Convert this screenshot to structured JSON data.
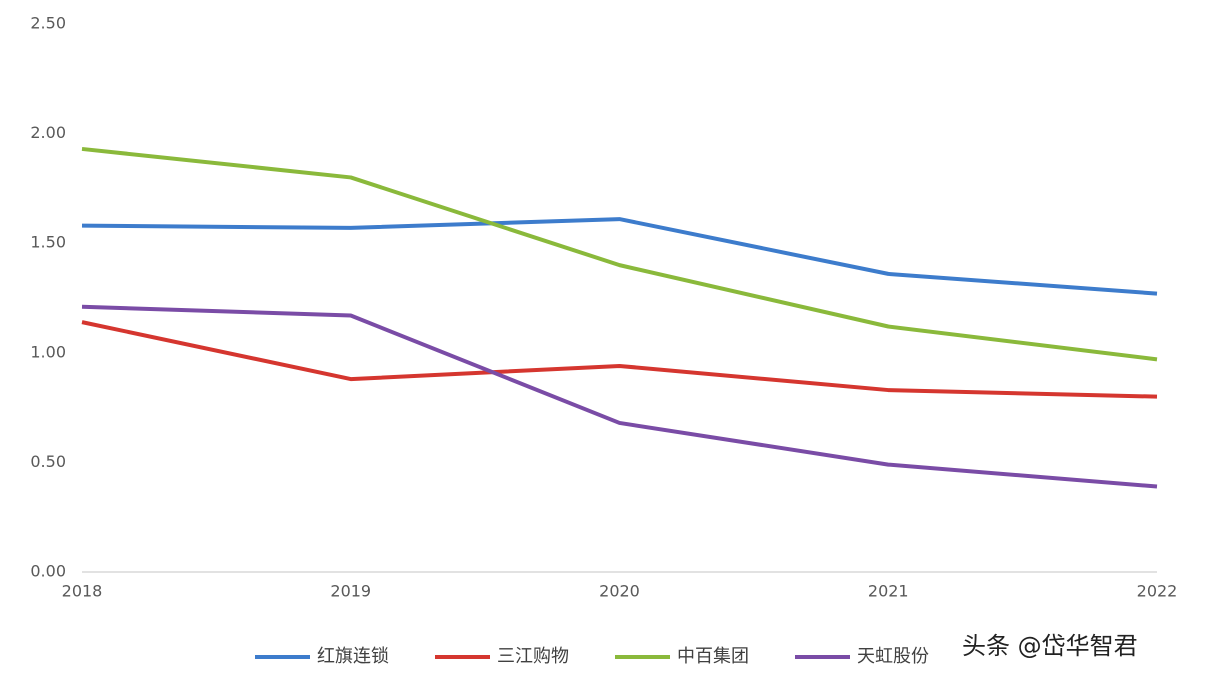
{
  "chart_data": {
    "type": "line",
    "categories": [
      "2018",
      "2019",
      "2020",
      "2021",
      "2022"
    ],
    "series": [
      {
        "name": "红旗连锁",
        "color": "#3d7ccc",
        "values": [
          1.58,
          1.57,
          1.61,
          1.36,
          1.27
        ]
      },
      {
        "name": "三江购物",
        "color": "#d5362f",
        "values": [
          1.14,
          0.88,
          0.94,
          0.83,
          0.8
        ]
      },
      {
        "name": "中百集团",
        "color": "#8ab93b",
        "values": [
          1.93,
          1.8,
          1.4,
          1.12,
          0.97
        ]
      },
      {
        "name": "天虹股份",
        "color": "#7a4ca6",
        "values": [
          1.21,
          1.17,
          0.68,
          0.49,
          0.39
        ]
      }
    ],
    "ylim": [
      0,
      2.5
    ],
    "yticks": [
      {
        "value": 0,
        "label": "0.00"
      },
      {
        "value": 0.5,
        "label": "0.50"
      },
      {
        "value": 1,
        "label": "1.00"
      },
      {
        "value": 1.5,
        "label": "1.50"
      },
      {
        "value": 2,
        "label": "2.00"
      },
      {
        "value": 2.5,
        "label": "2.50"
      }
    ],
    "legend": "bottom",
    "watermark": "头条 @岱华智君"
  }
}
